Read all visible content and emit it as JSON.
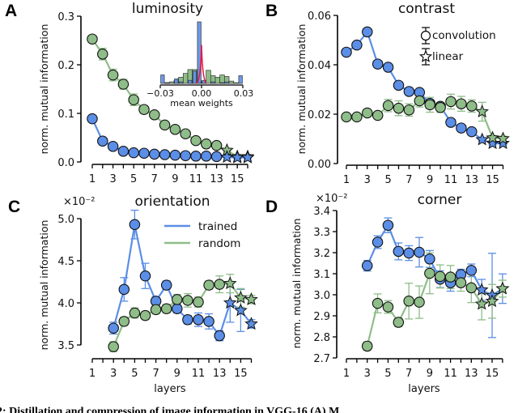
{
  "colors": {
    "trained": "#5b8ee6",
    "random": "#8fbd89",
    "kde": "#e8174a",
    "axis": "#000000"
  },
  "caption": "2: Distillation and compression of image information in VGG-16 (A) M",
  "chart_data": [
    {
      "type": "line",
      "panel": "A",
      "title": "luminosity",
      "ylabel": "norm. mutual information",
      "xlabel": "",
      "ylim": [
        0,
        0.3
      ],
      "yticks": [
        "0.0",
        "0.1",
        "0.2",
        "0.3"
      ],
      "ytick_values": [
        0,
        0.1,
        0.2,
        0.3
      ],
      "x": [
        1,
        2,
        3,
        4,
        5,
        6,
        7,
        8,
        9,
        10,
        11,
        12,
        13,
        14,
        15,
        16
      ],
      "xticklabels": [
        "1",
        "3",
        "5",
        "7",
        "9",
        "11",
        "13",
        "15"
      ],
      "marker_by_layer": "circle for layers 1-13 (convolution), star for layers 14-16 (linear)",
      "series": [
        {
          "key": "random",
          "values": [
            0.253,
            0.222,
            0.179,
            0.16,
            0.128,
            0.108,
            0.097,
            0.076,
            0.067,
            0.058,
            0.044,
            0.037,
            0.034,
            0.024,
            0.011,
            0.011
          ],
          "err": [
            0.005,
            0.012,
            0.012,
            0.01,
            0.012,
            0.008,
            0.006,
            0.004,
            0.003,
            0.003,
            0.003,
            0.002,
            0.002,
            0.002,
            0.001,
            0.001
          ]
        },
        {
          "key": "trained",
          "values": [
            0.089,
            0.043,
            0.032,
            0.022,
            0.019,
            0.018,
            0.016,
            0.015,
            0.014,
            0.013,
            0.012,
            0.012,
            0.011,
            0.01,
            0.009,
            0.009
          ],
          "err": [
            0.003,
            0.002,
            0.001,
            0.001,
            0.001,
            0.001,
            0.001,
            0.001,
            0.001,
            0.001,
            0.001,
            0.001,
            0.001,
            0.001,
            0.001,
            0.001
          ]
        }
      ],
      "inset": {
        "type": "histogram",
        "xlabel": "mean weights",
        "xticks": [
          "−0.03",
          "0.00",
          "0.03"
        ],
        "xlim": [
          -0.03,
          0.03
        ],
        "bins": 18,
        "random_counts": [
          0,
          1,
          2,
          4,
          8,
          13,
          18,
          18,
          3,
          2,
          17,
          10,
          8,
          11,
          9,
          3,
          1,
          0
        ],
        "trained_counts": [
          11,
          1,
          0,
          6,
          2,
          0,
          4,
          16,
          80,
          4,
          0,
          2,
          0,
          1,
          2,
          0,
          0,
          10
        ],
        "kde_peak": 50
      }
    },
    {
      "type": "line",
      "panel": "B",
      "title": "contrast",
      "ylabel": "norm. mutual information",
      "xlabel": "",
      "ylim": [
        0,
        0.06
      ],
      "yticks": [
        "0.00",
        "0.02",
        "0.04",
        "0.06"
      ],
      "ytick_values": [
        0,
        0.02,
        0.04,
        0.06
      ],
      "x": [
        1,
        2,
        3,
        4,
        5,
        6,
        7,
        8,
        9,
        10,
        11,
        12,
        13,
        14,
        15,
        16
      ],
      "xticklabels": [
        "1",
        "3",
        "5",
        "7",
        "9",
        "11",
        "13",
        "15"
      ],
      "legend": {
        "placement": "top-right",
        "entries": [
          "convolution",
          "linear"
        ]
      },
      "series": [
        {
          "key": "trained",
          "values": [
            0.0451,
            0.048,
            0.0533,
            0.0403,
            0.039,
            0.0317,
            0.0292,
            0.0288,
            0.0244,
            0.0232,
            0.0167,
            0.0144,
            0.0129,
            0.0097,
            0.0082,
            0.0082
          ],
          "err": [
            0.0012,
            0.0008,
            0.0008,
            0.0008,
            0.0008,
            0.0008,
            0.0008,
            0.0008,
            0.0008,
            0.0008,
            0.0008,
            0.0008,
            0.0008,
            0.0006,
            0.0006,
            0.0006
          ]
        },
        {
          "key": "random",
          "values": [
            0.0189,
            0.0189,
            0.0205,
            0.0195,
            0.0235,
            0.0224,
            0.0217,
            0.0254,
            0.0238,
            0.0227,
            0.0251,
            0.0242,
            0.0233,
            0.021,
            0.0104,
            0.0101
          ],
          "err": [
            0.001,
            0.001,
            0.001,
            0.001,
            0.0025,
            0.003,
            0.0025,
            0.0025,
            0.003,
            0.002,
            0.003,
            0.003,
            0.0025,
            0.0038,
            0.001,
            0.001
          ]
        }
      ]
    },
    {
      "type": "line",
      "panel": "C",
      "title": "orientation",
      "ylabel": "norm. mutual information",
      "xlabel": "layers",
      "multiplier": "×10⁻²",
      "ylim": [
        3.5,
        5.0
      ],
      "yticks": [
        "3.5",
        "4.0",
        "4.5",
        "5.0"
      ],
      "ytick_values": [
        3.5,
        4.0,
        4.5,
        5.0
      ],
      "x": [
        1,
        2,
        3,
        4,
        5,
        6,
        7,
        8,
        9,
        10,
        11,
        12,
        13,
        14,
        15,
        16
      ],
      "xticklabels": [
        "1",
        "3",
        "5",
        "7",
        "9",
        "11",
        "13",
        "15"
      ],
      "legend": {
        "placement": "top-right",
        "entries": [
          "trained",
          "random"
        ]
      },
      "series": [
        {
          "key": "trained",
          "values": [
            null,
            null,
            3.7,
            4.16,
            4.93,
            4.32,
            4.02,
            4.21,
            3.93,
            3.8,
            3.8,
            3.78,
            3.61,
            4.0,
            3.91,
            3.75
          ],
          "err": [
            null,
            null,
            0.07,
            0.14,
            0.17,
            0.15,
            0.05,
            0.05,
            0.05,
            0.05,
            0.08,
            0.09,
            0.06,
            0.23,
            0.25,
            0.05
          ]
        },
        {
          "key": "random",
          "values": [
            null,
            null,
            3.48,
            3.78,
            3.88,
            3.85,
            3.92,
            3.93,
            4.04,
            4.03,
            4.01,
            4.21,
            4.22,
            4.23,
            4.06,
            4.04
          ],
          "err": [
            null,
            null,
            0.06,
            0.05,
            0.06,
            0.05,
            0.05,
            0.05,
            0.06,
            0.08,
            0.06,
            0.05,
            0.1,
            0.11,
            0.11,
            0.05
          ]
        }
      ]
    },
    {
      "type": "line",
      "panel": "D",
      "title": "corner",
      "ylabel": "norm. mutual information",
      "xlabel": "layers",
      "multiplier": "×10⁻²",
      "ylim": [
        2.7,
        3.4
      ],
      "yticks": [
        "2.7",
        "2.8",
        "2.9",
        "3.0",
        "3.1",
        "3.2",
        "3.3",
        "3.4"
      ],
      "ytick_values": [
        2.7,
        2.8,
        2.9,
        3.0,
        3.1,
        3.2,
        3.3,
        3.4
      ],
      "x": [
        1,
        2,
        3,
        4,
        5,
        6,
        7,
        8,
        9,
        10,
        11,
        12,
        13,
        14,
        15,
        16
      ],
      "xticklabels": [
        "1",
        "3",
        "5",
        "7",
        "9",
        "11",
        "13",
        "15"
      ],
      "series": [
        {
          "key": "trained",
          "values": [
            null,
            null,
            3.138,
            3.25,
            3.33,
            3.206,
            3.198,
            3.202,
            3.17,
            3.074,
            3.057,
            3.096,
            3.116,
            3.023,
            2.997,
            3.029
          ],
          "err": [
            null,
            null,
            0.025,
            0.03,
            0.035,
            0.04,
            0.035,
            0.07,
            0.04,
            0.04,
            0.04,
            0.025,
            0.03,
            0.05,
            0.2,
            0.07
          ]
        },
        {
          "key": "random",
          "values": [
            null,
            null,
            2.756,
            2.959,
            2.942,
            2.869,
            2.97,
            2.965,
            3.102,
            3.087,
            3.084,
            3.057,
            3.033,
            2.956,
            2.969,
            3.029
          ],
          "err": [
            null,
            null,
            0.02,
            0.045,
            0.03,
            0.02,
            0.085,
            0.077,
            0.097,
            0.055,
            0.055,
            0.04,
            0.07,
            0.075,
            0.08,
            0.04
          ]
        }
      ]
    }
  ]
}
